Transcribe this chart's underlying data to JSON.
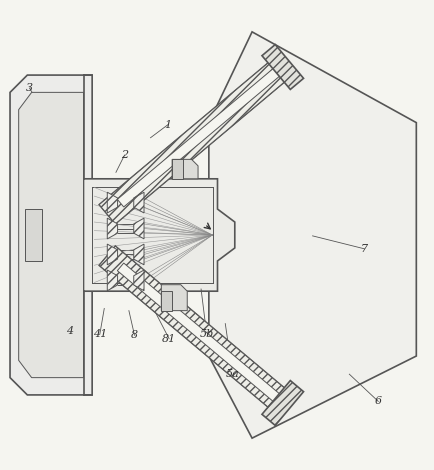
{
  "bg_color": "#f5f5f0",
  "line_color": "#555555",
  "dark_line": "#333333",
  "figsize": [
    4.35,
    4.7
  ],
  "dpi": 100
}
